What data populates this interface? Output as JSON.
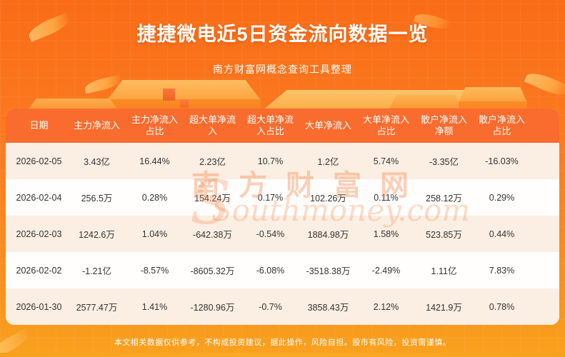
{
  "header": {
    "title": "捷捷微电近5日资金流向数据一览",
    "subtitle": "南方财富网概念查询工具整理"
  },
  "watermark": {
    "cn": "南方财富网",
    "en": "Southmoney.com"
  },
  "footer": {
    "disclaimer": "本文相关数据仅供参考，不构成投资建议，据此操作，风险自担。股市有风险，投资需谨慎。"
  },
  "colors": {
    "background_orange": "#fb7d22",
    "table_header_bg": "#fa6c2e",
    "row_alt_cream": "#fbeee2",
    "row_white": "#fffefd",
    "text_dark": "#333333",
    "bottom_bar": "#f7a120"
  },
  "chart_data": {
    "type": "table",
    "title": "捷捷微电近5日资金流向数据一览",
    "columns": [
      "日期",
      "主力净流入",
      "主力净流入占比",
      "超大单净流入",
      "超大单净流入占比",
      "大单净流入",
      "大单净流入占比",
      "散户净流入净额",
      "散户净流入占比"
    ],
    "rows": [
      [
        "2026-02-05",
        "3.43亿",
        "16.44%",
        "2.23亿",
        "10.7%",
        "1.2亿",
        "5.74%",
        "-3.35亿",
        "-16.03%"
      ],
      [
        "2026-02-04",
        "256.5万",
        "0.28%",
        "154.24万",
        "0.17%",
        "102.26万",
        "0.11%",
        "258.12万",
        "0.29%"
      ],
      [
        "2026-02-03",
        "1242.6万",
        "1.04%",
        "-642.38万",
        "-0.54%",
        "1884.98万",
        "1.58%",
        "523.85万",
        "0.44%"
      ],
      [
        "2026-02-02",
        "-1.21亿",
        "-8.57%",
        "-8605.32万",
        "-6.08%",
        "-3518.38万",
        "-2.49%",
        "1.11亿",
        "7.83%"
      ],
      [
        "2026-01-30",
        "2577.47万",
        "1.41%",
        "-1280.96万",
        "-0.7%",
        "3858.43万",
        "2.12%",
        "1421.9万",
        "0.78%"
      ]
    ]
  }
}
